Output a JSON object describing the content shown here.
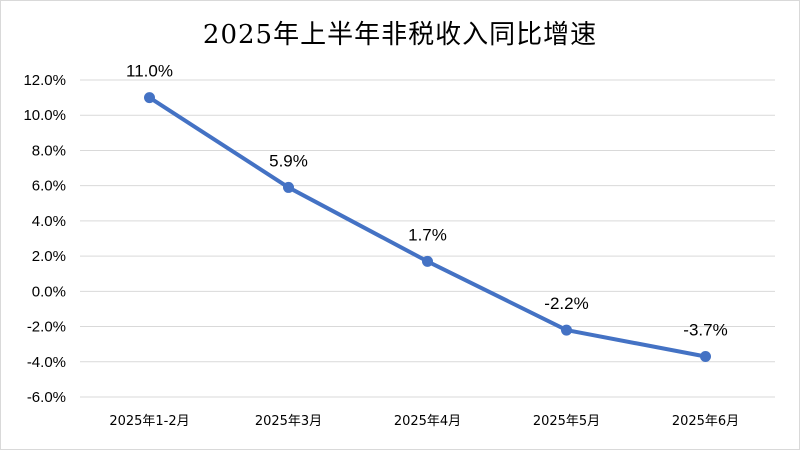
{
  "chart_data": {
    "type": "line",
    "title": "2025年上半年非税收入同比增速",
    "xlabel": "",
    "ylabel": "",
    "categories": [
      "2025年1-2月",
      "2025年3月",
      "2025年4月",
      "2025年5月",
      "2025年6月"
    ],
    "series": [
      {
        "values": [
          11.0,
          5.9,
          1.7,
          -2.2,
          -3.7
        ],
        "labels": [
          "11.0%",
          "5.9%",
          "1.7%",
          "-2.2%",
          "-3.7%"
        ],
        "color": "#4472c4"
      }
    ],
    "ylim": [
      -6.0,
      12.0
    ],
    "yticks": [
      12.0,
      10.0,
      8.0,
      6.0,
      4.0,
      2.0,
      0.0,
      -2.0,
      -4.0,
      -6.0
    ],
    "ytick_labels": [
      "12.0%",
      "10.0%",
      "8.0%",
      "6.0%",
      "4.0%",
      "2.0%",
      "0.0%",
      "-2.0%",
      "-4.0%",
      "-6.0%"
    ],
    "grid": true,
    "gridline_color": "#d9d9d9",
    "legend": "none"
  }
}
